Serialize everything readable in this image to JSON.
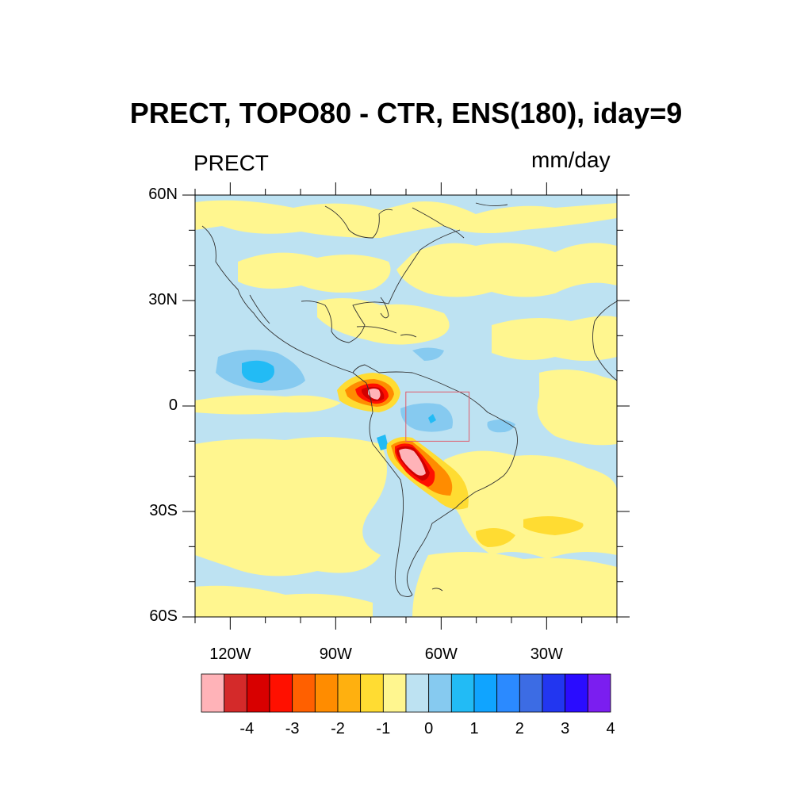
{
  "figure": {
    "title": "PRECT, TOPO80 - CTR, ENS(180), iday=9",
    "left_label": "PRECT",
    "right_label": "mm/day"
  },
  "map": {
    "projection": "cylindrical-equidistant",
    "lon_range": [
      -130,
      -10
    ],
    "lat_range": [
      -60,
      60
    ],
    "lat_ticks": [
      {
        "value": 60,
        "label": "60N"
      },
      {
        "value": 30,
        "label": "30N"
      },
      {
        "value": 0,
        "label": "0"
      },
      {
        "value": -30,
        "label": "30S"
      },
      {
        "value": -60,
        "label": "60S"
      }
    ],
    "lon_ticks": [
      {
        "value": -120,
        "label": "120W"
      },
      {
        "value": -90,
        "label": "90W"
      },
      {
        "value": -60,
        "label": "60W"
      },
      {
        "value": -30,
        "label": "30W"
      }
    ],
    "box": {
      "lon": [
        -72,
        -54
      ],
      "lat": [
        -10,
        4
      ],
      "color": "#e05a6a"
    },
    "background_color": "#bde2f2",
    "features": [
      {
        "name": "yellow-band-north",
        "level": -0.5,
        "color": "#fff68f"
      },
      {
        "name": "blue-anomaly-east-pacific",
        "level": 1.5,
        "color": "#22bbf5"
      },
      {
        "name": "red-anomaly-colombia",
        "level": -3.5,
        "color": "#d00000"
      },
      {
        "name": "red-anomaly-peru-bolivia",
        "level": -4.0,
        "color": "#ffb3b8"
      },
      {
        "name": "blue-anomaly-amazon",
        "level": 1.0,
        "color": "#86caf0"
      }
    ]
  },
  "colorbar": {
    "colors": [
      "#ffb3b8",
      "#d42a2a",
      "#d80000",
      "#ff1000",
      "#ff6000",
      "#ff8c00",
      "#ffb00f",
      "#ffdc32",
      "#fff68f",
      "#bde2f2",
      "#86caf0",
      "#22bbf5",
      "#10a4ff",
      "#2b8aff",
      "#3c6ce4",
      "#2236f0",
      "#2a0cff",
      "#7b1ef0"
    ],
    "ticks": [
      {
        "index": 1,
        "label": "-4"
      },
      {
        "index": 2,
        "label": "-3"
      },
      {
        "index": 3,
        "label": "-2"
      },
      {
        "index": 4,
        "label": "-1"
      },
      {
        "index": 5,
        "label": "0"
      },
      {
        "index": 6,
        "label": "1"
      },
      {
        "index": 7,
        "label": "2"
      },
      {
        "index": 8,
        "label": "3"
      },
      {
        "index": 9,
        "label": "4"
      }
    ]
  }
}
